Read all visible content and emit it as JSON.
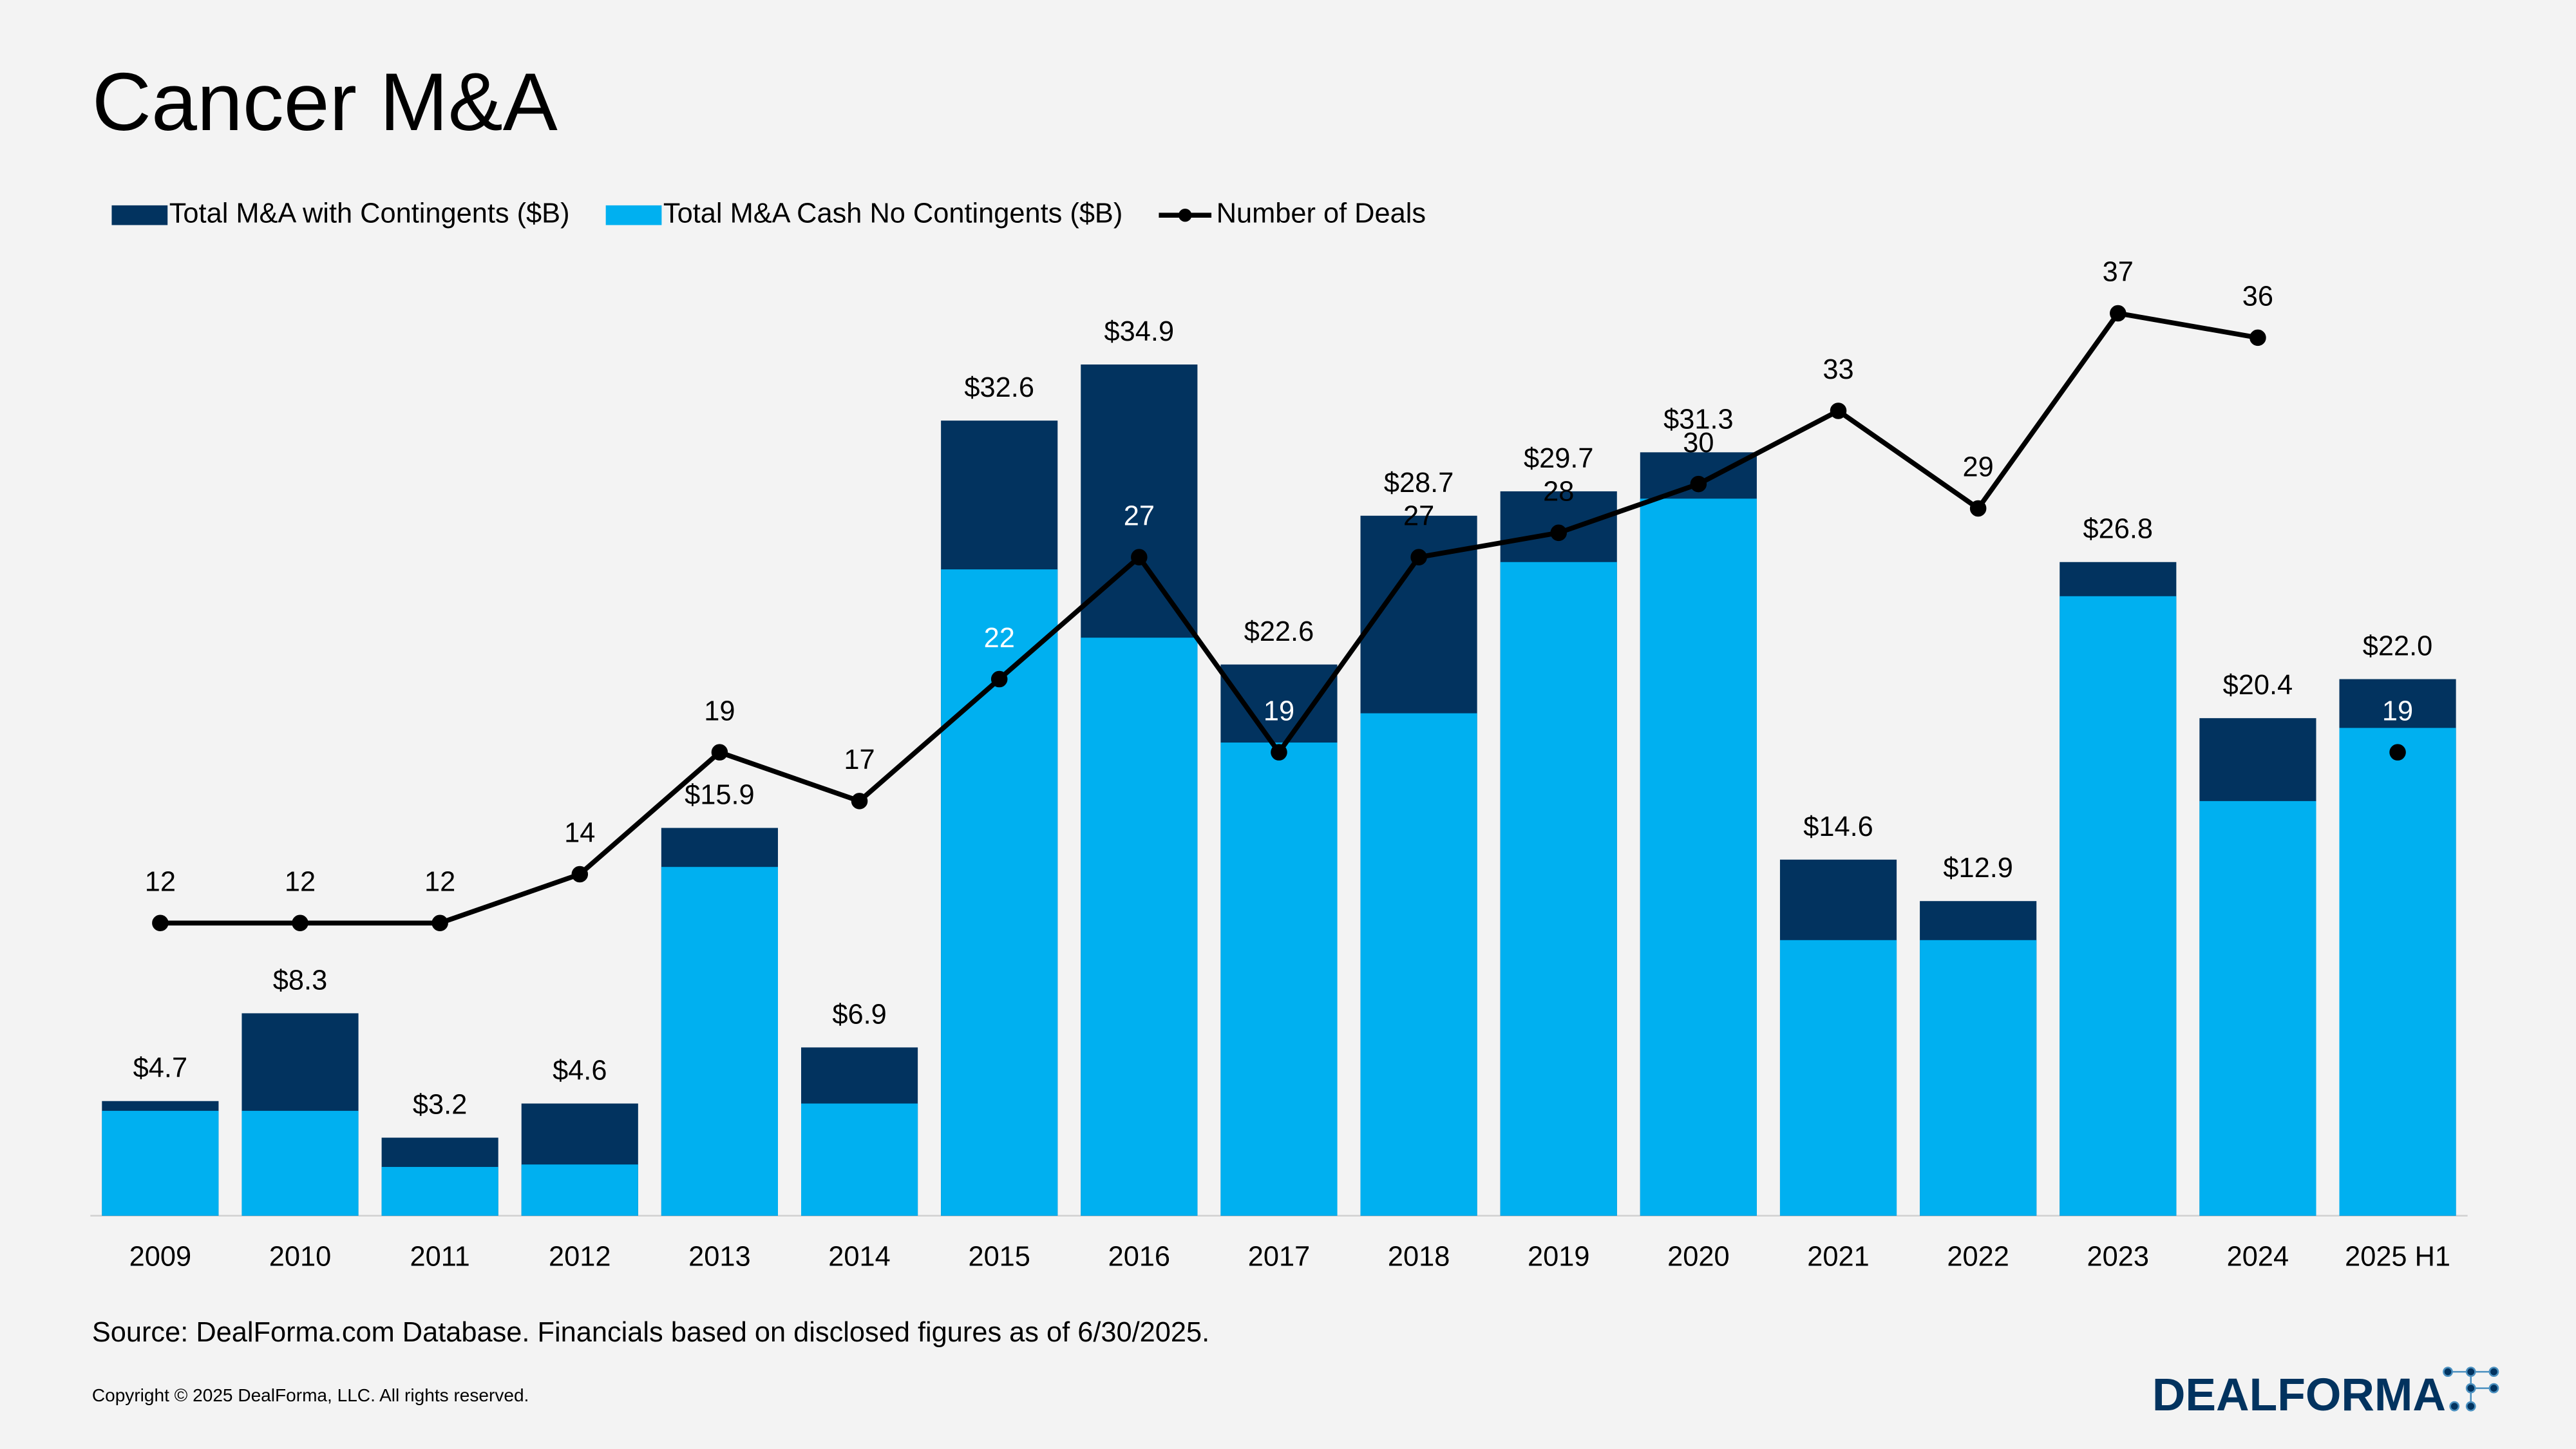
{
  "chart_data": {
    "type": "bar_line",
    "title": "Cancer M&A",
    "categories": [
      "2009",
      "2010",
      "2011",
      "2012",
      "2013",
      "2014",
      "2015",
      "2016",
      "2017",
      "2018",
      "2019",
      "2020",
      "2021",
      "2022",
      "2023",
      "2024",
      "2025 H1"
    ],
    "series": [
      {
        "name": "Total M&A with Contingents ($B)",
        "color": "#02335f",
        "kind": "bar",
        "values": [
          4.7,
          8.3,
          3.2,
          4.6,
          15.9,
          6.9,
          32.6,
          34.9,
          22.6,
          28.7,
          29.7,
          31.3,
          14.6,
          12.9,
          26.8,
          20.4,
          22.0
        ],
        "value_labels": [
          "$4.7",
          "$8.3",
          "$3.2",
          "$4.6",
          "$15.9",
          "$6.9",
          "$32.6",
          "$34.9",
          "$22.6",
          "$28.7",
          "$29.7",
          "$31.3",
          "$14.6",
          "$12.9",
          "$26.8",
          "$20.4",
          "$22.0"
        ]
      },
      {
        "name": "Total M&A Cash No Contingents ($B)",
        "color": "#00b0f0",
        "kind": "bar",
        "values": [
          4.3,
          4.3,
          2.0,
          2.1,
          14.3,
          4.6,
          26.5,
          23.7,
          19.4,
          20.6,
          26.8,
          29.4,
          11.3,
          11.3,
          25.4,
          17.0,
          20.0
        ]
      },
      {
        "name": "Number of Deals",
        "color": "#000000",
        "kind": "line",
        "axis": "y2",
        "disconnect_last_point": true,
        "values": [
          12,
          12,
          12,
          14,
          19,
          17,
          22,
          27,
          19,
          27,
          28,
          30,
          33,
          29,
          37,
          36,
          19
        ]
      }
    ],
    "ylim": [
      0,
      39
    ],
    "y2lim": [
      0,
      39
    ],
    "legend": "top-left",
    "source": "Source: DealForma.com Database. Financials based on disclosed figures as of 6/30/2025.",
    "copyright": "Copyright © 2025 DealForma, LLC. All rights reserved.",
    "logo": "DEALFORMA"
  }
}
